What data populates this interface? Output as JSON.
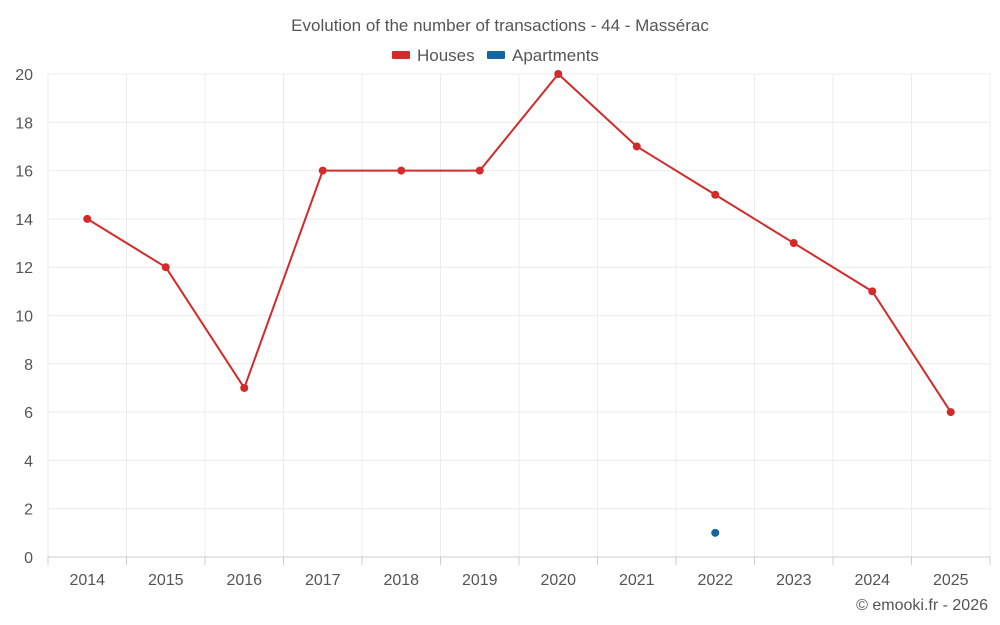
{
  "chart_data": {
    "type": "line",
    "title": "Evolution of the number of transactions - 44 - Massérac",
    "categories": [
      "2014",
      "2015",
      "2016",
      "2017",
      "2018",
      "2019",
      "2020",
      "2021",
      "2022",
      "2023",
      "2024",
      "2025"
    ],
    "series": [
      {
        "name": "Houses",
        "color": "#d32a2a",
        "values": [
          14,
          12,
          7,
          16,
          16,
          16,
          20,
          17,
          15,
          13,
          11,
          6
        ]
      },
      {
        "name": "Apartments",
        "color": "#1565a0",
        "values": [
          null,
          null,
          null,
          null,
          null,
          null,
          null,
          null,
          1,
          null,
          null,
          null
        ]
      }
    ],
    "ylim": [
      0,
      20
    ],
    "yticks": [
      "0",
      "2",
      "4",
      "6",
      "8",
      "10",
      "12",
      "14",
      "16",
      "18",
      "20"
    ],
    "xlabel": "",
    "ylabel": "",
    "grid": true,
    "legend": "top-center"
  },
  "credit": "© emooki.fr - 2026"
}
